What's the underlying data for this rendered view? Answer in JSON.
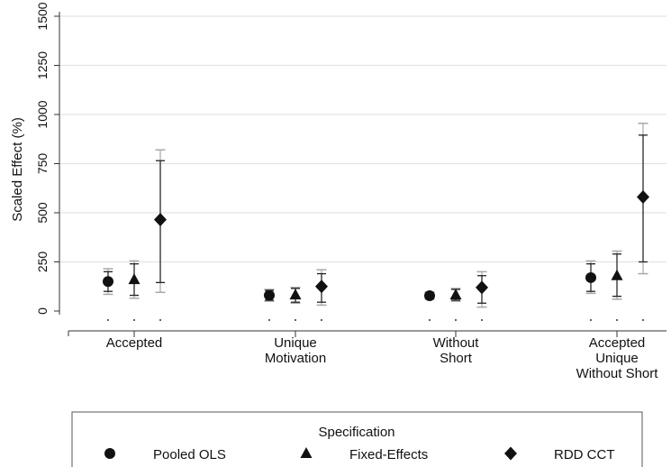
{
  "chart_data": {
    "type": "scatter",
    "title": "",
    "xlabel": "",
    "ylabel": "Scaled Effect (%)",
    "ylim": [
      0,
      1500
    ],
    "yticks": [
      0,
      250,
      500,
      750,
      1000,
      1250,
      1500
    ],
    "ytick_labels": [
      "0",
      "250",
      "500",
      "750",
      "1000",
      "1250",
      "1500"
    ],
    "grid": true,
    "categories": [
      [
        "Accepted"
      ],
      [
        "Unique",
        "Motivation"
      ],
      [
        "Without",
        "Short"
      ],
      [
        "Accepted",
        "Unique",
        "Without Short"
      ]
    ],
    "legend": {
      "title": "Specification",
      "position": "bottom",
      "entries": [
        "Pooled OLS",
        "Fixed-Effects",
        "RDD CCT"
      ]
    },
    "series": [
      {
        "name": "Pooled OLS",
        "marker": "circle",
        "values": [
          150,
          80,
          78,
          170
        ],
        "ci_outer": [
          [
            85,
            215
          ],
          [
            50,
            110
          ],
          [
            60,
            96
          ],
          [
            90,
            255
          ]
        ],
        "ci_inner": [
          [
            100,
            200
          ],
          [
            55,
            105
          ],
          [
            63,
            93
          ],
          [
            100,
            240
          ]
        ]
      },
      {
        "name": "Fixed-Effects",
        "marker": "triangle",
        "values": [
          160,
          82,
          82,
          180
        ],
        "ci_outer": [
          [
            65,
            255
          ],
          [
            40,
            120
          ],
          [
            50,
            115
          ],
          [
            60,
            305
          ]
        ],
        "ci_inner": [
          [
            80,
            240
          ],
          [
            45,
            115
          ],
          [
            55,
            110
          ],
          [
            75,
            290
          ]
        ]
      },
      {
        "name": "RDD CCT",
        "marker": "diamond",
        "values": [
          465,
          125,
          120,
          580
        ],
        "ci_outer": [
          [
            95,
            820
          ],
          [
            30,
            210
          ],
          [
            20,
            200
          ],
          [
            190,
            955
          ]
        ],
        "ci_inner": [
          [
            145,
            765
          ],
          [
            45,
            190
          ],
          [
            40,
            180
          ],
          [
            250,
            895
          ]
        ]
      }
    ],
    "colors": {
      "marker": "#111111",
      "ci_inner": "#222222",
      "ci_outer": "#a8a8a8",
      "grid": "#e3e3e3"
    }
  }
}
